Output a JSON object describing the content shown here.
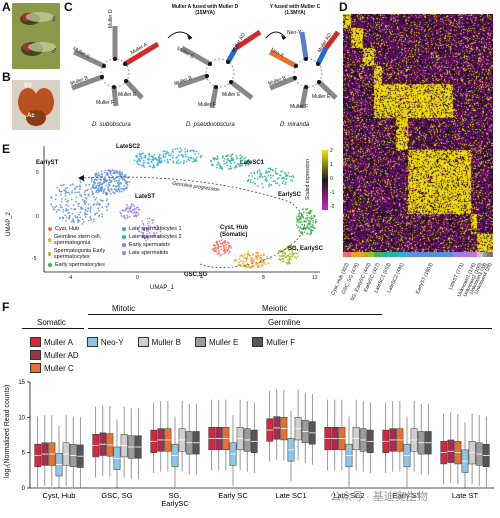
{
  "panels": {
    "a": "A",
    "b": "B",
    "c": "C",
    "d": "D",
    "e": "E",
    "f": "F"
  },
  "panel_a": {
    "female_symbol": "♀",
    "male_symbol": "♂"
  },
  "panel_b": {
    "sv_label": "SV",
    "ac_label": "Ac"
  },
  "panel_c": {
    "fusion1_title_line1": "Muller A fused with Muller D",
    "fusion1_title_line2": "(15MYA)",
    "fusion2_title_line1": "Y fused with Muller C",
    "fusion2_title_line2": "(1.5MYA)",
    "species": [
      "D. subobscura",
      "D. pseudoobscura",
      "D. miranda"
    ],
    "diagram1_labels": [
      "Muller D",
      "Muller A",
      "Muller C",
      "Muller B",
      "Muller E",
      "Muller F"
    ],
    "diagram2_labels": [
      "Muller AD",
      "Muller C",
      "Muller B",
      "Muller E",
      "Muller F"
    ],
    "diagram3_labels": [
      "Neo-Y",
      "Muller AD",
      "Neo-X",
      "Muller B",
      "Muller E",
      "Muller F"
    ]
  },
  "panel_d": {
    "colorbar_label": "Scaled expression",
    "colorbar_ticks": [
      "2",
      "1",
      "0",
      "-1",
      "-2"
    ],
    "clusters": [
      "Cyst, Hub (322)",
      "GSC, SG (476)",
      "SG, EarlySC (442)",
      "EarlySC (327)",
      "LateSC1 (553)",
      "LateSC2 (491)",
      "EarlyST (1803)",
      "LateST (771)",
      "Unknown1 (176)",
      "Unknown2 (100)",
      "Unknown3 (33)",
      "Unknown4 (28)"
    ],
    "cluster_colors": [
      "#f26b5b",
      "#f0a02a",
      "#a7b82a",
      "#45b24a",
      "#2ab59a",
      "#27b3d0",
      "#5a8fe0",
      "#a37ee0",
      "#e36bd0",
      "#c0c0c0",
      "#9a9a9a",
      "#777777"
    ]
  },
  "panel_e": {
    "cluster_labels": [
      "LateSC2",
      "LateSC1",
      "EarlyST",
      "EarlySC",
      "LateST",
      "Cyst, Hub (Somatic)",
      "SG, EarlySC",
      "GSC,SG"
    ],
    "progression_label": "Germline progression",
    "xlabel": "UMAP_1",
    "ylabel": "UMAP_2",
    "xticks": [
      "-4",
      "0",
      "4",
      "8",
      "12"
    ],
    "yticks": [
      "5",
      "0",
      "-5"
    ],
    "legend": [
      {
        "label": "Cyst, Hub",
        "color": "#f26b5b"
      },
      {
        "label": "Germline stem cell, spermatogonia",
        "color": "#f0a02a"
      },
      {
        "label": "Spermatogonia Early spermatocytes",
        "color": "#a7b82a"
      },
      {
        "label": "Early spermatocytes",
        "color": "#45b24a"
      },
      {
        "label": "Late spermatocytes 1",
        "color": "#2ab59a"
      },
      {
        "label": "Late spermatocytes 2",
        "color": "#27b3d0"
      },
      {
        "label": "Early spermatids",
        "color": "#5a8fe0"
      },
      {
        "label": "Late spermatids",
        "color": "#a37ee0"
      }
    ]
  },
  "panel_f": {
    "group_somatic": "Somatic",
    "group_mitotic": "Mitotic",
    "group_meiotic": "Meiotic",
    "group_germline": "Germline",
    "ylabel": "log₂(Normalized Read counts)",
    "yticks": [
      "15",
      "10",
      "5",
      "0"
    ],
    "legend": [
      {
        "label": "Muller A",
        "color": "#d7263d"
      },
      {
        "label": "Neo-Y",
        "color": "#8ec6e6"
      },
      {
        "label": "Muller B",
        "color": "#cfcfcf"
      },
      {
        "label": "Muller E",
        "color": "#9b9b9b"
      },
      {
        "label": "Muller F",
        "color": "#555555"
      },
      {
        "label": "Muller AD",
        "color": "#a0304f"
      },
      {
        "label": "Muller C",
        "color": "#e8702a"
      }
    ],
    "categories": [
      "Cyst, Hub",
      "GSC, SG",
      "SG, EarlySC",
      "Early SC",
      "Late SC1",
      "Late SC2",
      "Early ST",
      "Late ST"
    ]
  },
  "chart_data": {
    "type": "box",
    "categories": [
      "Cyst, Hub",
      "GSC, SG",
      "SG, EarlySC",
      "Early SC",
      "Late SC1",
      "Late SC2",
      "Early ST",
      "Late ST"
    ],
    "ylabel": "log₂(Normalized Read counts)",
    "ylim": [
      0,
      15
    ],
    "series": [
      {
        "name": "Muller A",
        "medians": [
          4.6,
          6.0,
          6.6,
          7.0,
          8.2,
          7.0,
          6.6,
          5.0
        ]
      },
      {
        "name": "Muller AD",
        "medians": [
          4.8,
          6.2,
          6.8,
          7.0,
          8.5,
          7.0,
          6.8,
          5.2
        ]
      },
      {
        "name": "Muller C",
        "medians": [
          4.8,
          6.1,
          6.8,
          7.0,
          8.4,
          7.0,
          6.8,
          5.0
        ]
      },
      {
        "name": "Neo-Y",
        "medians": [
          3.3,
          4.2,
          4.6,
          4.8,
          5.4,
          4.6,
          4.6,
          3.8
        ]
      },
      {
        "name": "Muller B",
        "medians": [
          4.8,
          6.0,
          6.8,
          7.0,
          8.4,
          7.0,
          6.8,
          5.0
        ]
      },
      {
        "name": "Muller E",
        "medians": [
          4.6,
          5.8,
          6.4,
          6.8,
          8.0,
          6.8,
          6.4,
          4.8
        ]
      },
      {
        "name": "Muller F",
        "medians": [
          4.5,
          5.8,
          6.4,
          6.6,
          7.8,
          6.6,
          6.4,
          4.6
        ]
      }
    ]
  },
  "watermark": "公众号 · 基迪奥生物"
}
